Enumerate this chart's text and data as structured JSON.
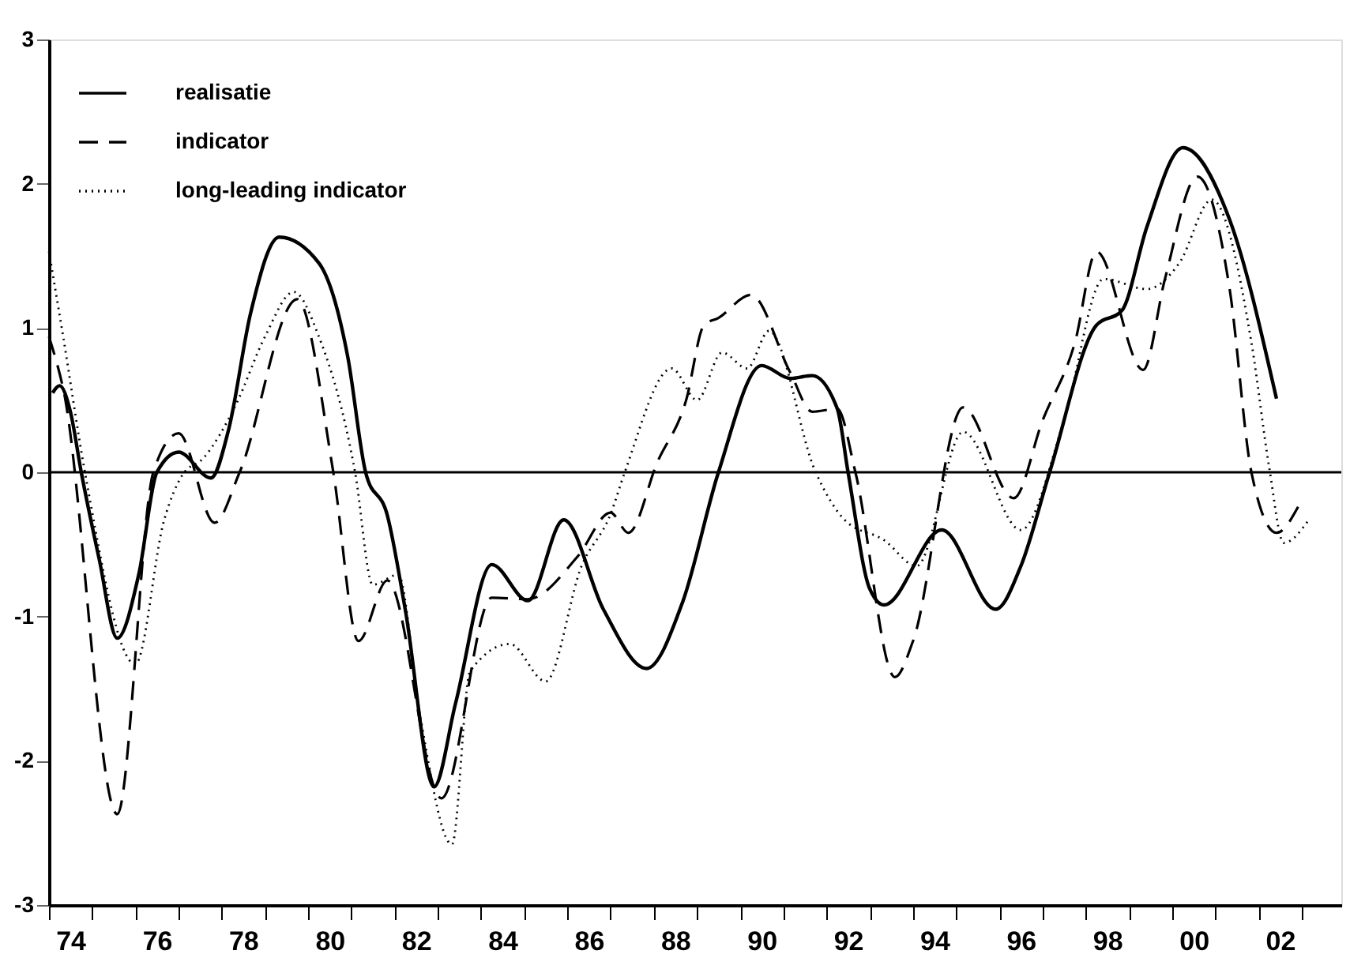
{
  "chart_data": {
    "type": "line",
    "xlim": [
      "1974-01",
      "2003-12"
    ],
    "ylim": [
      -3,
      3
    ],
    "yticks": [
      -3,
      -2,
      -1,
      0,
      1,
      2,
      3
    ],
    "grid": false,
    "legend": "top left",
    "xticks": [
      {
        "value": "1974-01",
        "label": null
      },
      {
        "value": "1974-07",
        "label": "74"
      },
      {
        "value": "1975-01",
        "label": null
      },
      {
        "value": "1976-01",
        "label": null
      },
      {
        "value": "1976-07",
        "label": "76"
      },
      {
        "value": "1977-01",
        "label": null
      },
      {
        "value": "1978-01",
        "label": null
      },
      {
        "value": "1978-07",
        "label": "78"
      },
      {
        "value": "1979-01",
        "label": null
      },
      {
        "value": "1980-01",
        "label": null
      },
      {
        "value": "1980-07",
        "label": "80"
      },
      {
        "value": "1981-01",
        "label": null
      },
      {
        "value": "1982-01",
        "label": null
      },
      {
        "value": "1982-07",
        "label": "82"
      },
      {
        "value": "1983-01",
        "label": null
      },
      {
        "value": "1984-01",
        "label": null
      },
      {
        "value": "1984-07",
        "label": "84"
      },
      {
        "value": "1985-01",
        "label": null
      },
      {
        "value": "1986-01",
        "label": null
      },
      {
        "value": "1986-07",
        "label": "86"
      },
      {
        "value": "1987-01",
        "label": null
      },
      {
        "value": "1988-01",
        "label": null
      },
      {
        "value": "1988-07",
        "label": "88"
      },
      {
        "value": "1989-01",
        "label": null
      },
      {
        "value": "1990-01",
        "label": null
      },
      {
        "value": "1990-07",
        "label": "90"
      },
      {
        "value": "1991-01",
        "label": null
      },
      {
        "value": "1992-01",
        "label": null
      },
      {
        "value": "1992-07",
        "label": "92"
      },
      {
        "value": "1993-01",
        "label": null
      },
      {
        "value": "1994-01",
        "label": null
      },
      {
        "value": "1994-07",
        "label": "94"
      },
      {
        "value": "1995-01",
        "label": null
      },
      {
        "value": "1996-01",
        "label": null
      },
      {
        "value": "1996-07",
        "label": "96"
      },
      {
        "value": "1997-01",
        "label": null
      },
      {
        "value": "1998-01",
        "label": null
      },
      {
        "value": "1998-07",
        "label": "98"
      },
      {
        "value": "1999-01",
        "label": null
      },
      {
        "value": "2000-01",
        "label": null
      },
      {
        "value": "2000-07",
        "label": "00"
      },
      {
        "value": "2001-01",
        "label": null
      },
      {
        "value": "2002-01",
        "label": null
      },
      {
        "value": "2002-07",
        "label": "02"
      },
      {
        "value": "2003-01",
        "label": null
      }
    ],
    "ref_lines": [
      {
        "axis": "y",
        "value": 0,
        "color": "#000000",
        "line_style": "solid"
      }
    ],
    "series": [
      {
        "name": "realisatie",
        "color": "#000000",
        "line_style": "solid",
        "x": [
          "1974-02",
          "1974-04",
          "1974-07",
          "1974-10",
          "1975-03",
          "1975-08",
          "1976-02",
          "1976-07",
          "1977-01",
          "1977-10",
          "1978-03",
          "1978-09",
          "1979-05",
          "1980-04",
          "1980-12",
          "1981-05",
          "1981-11",
          "1982-04",
          "1982-12",
          "1983-06",
          "1984-04",
          "1985-02",
          "1985-12",
          "1986-11",
          "1987-11",
          "1988-09",
          "1989-07",
          "1990-07",
          "1991-03",
          "1991-09",
          "1992-04",
          "1992-07",
          "1993-01",
          "1993-05",
          "1994-09",
          "1995-12",
          "1996-07",
          "1997-03",
          "1998-04",
          "1998-11",
          "1999-06",
          "2000-04",
          "2001-05",
          "2002-06"
        ],
        "values": [
          0.55,
          0.6,
          0.42,
          0.0,
          -0.6,
          -1.15,
          -0.7,
          0.0,
          0.14,
          -0.04,
          0.3,
          1.1,
          1.63,
          1.45,
          0.8,
          0.0,
          -0.3,
          -0.95,
          -2.18,
          -1.6,
          -0.64,
          -0.89,
          -0.33,
          -0.95,
          -1.36,
          -0.9,
          0.0,
          0.74,
          0.65,
          0.67,
          0.44,
          0.0,
          -0.81,
          -0.92,
          -0.4,
          -0.95,
          -0.65,
          0.0,
          1.02,
          1.12,
          1.7,
          2.25,
          1.75,
          0.51
        ]
      },
      {
        "name": "indicator",
        "color": "#000000",
        "line_style": "dashed",
        "x": [
          "1974-01",
          "1974-05",
          "1975-08",
          "1976-06",
          "1977-01",
          "1977-11",
          "1978-06",
          "1979-10",
          "1980-08",
          "1981-03",
          "1981-11",
          "1983-02",
          "1984-04",
          "1985-02",
          "1986-04",
          "1987-01",
          "1987-06",
          "1988-02",
          "1988-10",
          "1989-03",
          "1989-07",
          "1990-04",
          "1991-03",
          "1991-09",
          "1992-04",
          "1992-09",
          "1993-08",
          "1994-01",
          "1995-03",
          "1996-05",
          "1997-01",
          "1997-10",
          "1998-04",
          "1999-05",
          "1999-11",
          "2000-08",
          "2001-05",
          "2001-11",
          "2002-06",
          "2002-12"
        ],
        "values": [
          0.94,
          0.58,
          -2.37,
          0.0,
          0.27,
          -0.35,
          0.0,
          1.2,
          0.0,
          -1.17,
          -0.75,
          -2.26,
          -0.87,
          -0.88,
          -0.58,
          -0.28,
          -0.42,
          0.07,
          0.5,
          1.02,
          1.07,
          1.23,
          0.69,
          0.42,
          0.44,
          0.0,
          -1.42,
          -1.17,
          0.45,
          -0.18,
          0.36,
          0.9,
          1.53,
          0.71,
          1.34,
          2.05,
          1.27,
          0.0,
          -0.42,
          -0.24
        ]
      },
      {
        "name": "long-leading indicator",
        "color": "#000000",
        "line_style": "dotted",
        "x": [
          "1974-01",
          "1974-05",
          "1974-11",
          "1976-01",
          "1976-09",
          "1977-02",
          "1977-08",
          "1978-05",
          "1979-01",
          "1979-09",
          "1980-04",
          "1981-02",
          "1981-07",
          "1982-02",
          "1982-08",
          "1983-05",
          "1983-10",
          "1984-09",
          "1985-07",
          "1986-05",
          "1987-01",
          "1987-05",
          "1988-06",
          "1989-01",
          "1989-08",
          "1990-03",
          "1990-09",
          "1991-10",
          "1992-06",
          "1993-05",
          "1994-02",
          "1995-03",
          "1996-07",
          "1997-07",
          "1998-06",
          "1999-06",
          "2000-03",
          "2000-12",
          "2001-11",
          "2002-04",
          "2002-08",
          "2003-03"
        ],
        "values": [
          1.53,
          0.94,
          0.0,
          -1.33,
          -0.33,
          -0.02,
          0.1,
          0.47,
          0.94,
          1.25,
          0.94,
          0.0,
          -0.78,
          -0.71,
          -1.67,
          -2.58,
          -1.38,
          -1.19,
          -1.45,
          -0.65,
          -0.29,
          0.0,
          0.72,
          0.5,
          0.83,
          0.72,
          0.98,
          0.0,
          -0.33,
          -0.47,
          -0.65,
          0.28,
          -0.4,
          0.36,
          1.34,
          1.27,
          1.45,
          1.89,
          0.9,
          0.03,
          -0.49,
          -0.33
        ]
      }
    ]
  }
}
